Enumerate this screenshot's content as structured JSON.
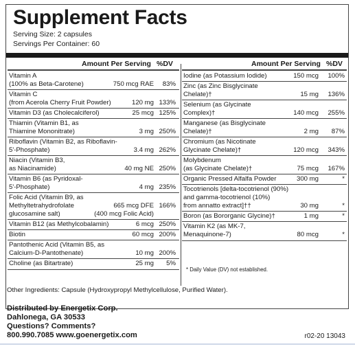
{
  "panel": {
    "title": "Supplement Facts",
    "serving_size": "Serving Size: 2 capsules",
    "servings_per_container": "Servings Per Container: 60"
  },
  "left_column": {
    "header_amount": "Amount Per Serving",
    "header_dv": "%DV",
    "rows": [
      {
        "line1": "Vitamin A",
        "line2": "(100% as Beta-Carotene)",
        "amount": "750 mcg RAE",
        "dv": "83%"
      },
      {
        "line1": "Vitamin C",
        "line2": "(from Acerola Cherry Fruit Powder)",
        "amount": "120 mg",
        "dv": "133%"
      },
      {
        "line1": "Vitamin D3 (as Cholecalciferol)",
        "amount": "25 mcg",
        "dv": "125%"
      },
      {
        "line1": "Thiamin (Vitamin B1, as",
        "line2": "Thiamine Mononitrate)",
        "amount": "3 mg",
        "dv": "250%"
      },
      {
        "line1": "Riboflavin (Vitamin B2, as Riboflavin-",
        "line2": "5'-Phosphate)",
        "amount": "3.4 mg",
        "dv": "262%"
      },
      {
        "line1": "Niacin (Vitamin B3,",
        "line2": "as Niacinamide)",
        "amount": "40 mg NE",
        "dv": "250%"
      },
      {
        "line1": "Vitamin B6 (as Pyridoxal-",
        "line2": "5'-Phosphate)",
        "amount": "4 mg",
        "dv": "235%"
      },
      {
        "line1": "Folic Acid (Vitamin B9, as",
        "line2": "Methyltetrahydrofolate",
        "amount": "665 mcg DFE",
        "dv": "166%",
        "line3": "glucosamine salt)",
        "line3_amount": "(400 mcg Folic Acid)"
      },
      {
        "line1": "Vitamin B12 (as Methylcobalamin)",
        "amount": "6 mcg",
        "dv": "250%"
      },
      {
        "line1": "Biotin",
        "amount": "60 mcg",
        "dv": "200%"
      },
      {
        "line1": "Pantothenic Acid (Vitamin B5, as",
        "line2": "Calcium-D-Pantothenate)",
        "amount": "10 mg",
        "dv": "200%"
      },
      {
        "line1": "Choline (as Bitartrate)",
        "amount": "25 mg",
        "dv": "5%"
      }
    ]
  },
  "right_column": {
    "header_amount": "Amount Per Serving",
    "header_dv": "%DV",
    "rows": [
      {
        "line1": "Iodine (as Potassium Iodide)",
        "amount": "150 mcg",
        "dv": "100%"
      },
      {
        "line1": "Zinc (as Zinc Bisglycinate",
        "line2": "Chelate)†",
        "amount": "15 mg",
        "dv": "136%"
      },
      {
        "line1": "Selenium (as Glycinate",
        "line2": "Complex)†",
        "amount": "140 mcg",
        "dv": "255%"
      },
      {
        "line1": "Manganese (as Bisglycinate",
        "line2": "Chelate)†",
        "amount": "2 mg",
        "dv": "87%"
      },
      {
        "line1": "Chromium (as Nicotinate",
        "line2": "Glycinate Chelate)†",
        "amount": "120 mcg",
        "dv": "343%"
      },
      {
        "line1": "Molybdenum",
        "line2": "(as Glycinate Chelate)†",
        "amount": "75 mcg",
        "dv": "167%"
      },
      {
        "line1": "Organic Pressed Alfalfa Powder",
        "amount": "300 mg",
        "dv": "*"
      },
      {
        "line1": "Tocotrienols [delta-tocotrienol (90%)",
        "line2": "and gamma-tocotrienol (10%)",
        "line3": "from annatto extract]††",
        "amount": "30 mg",
        "dv": "*"
      },
      {
        "line1": "Boron (as Bororganic Glycine)†",
        "amount": "1 mg",
        "dv": "*"
      },
      {
        "line1": "Vitamin K2 (as MK-7,",
        "line2": "Menaquinone-7)",
        "amount": "80 mcg",
        "dv": "*"
      }
    ],
    "footnote": "* Daily Value (DV) not established."
  },
  "other_ingredients": "Other Ingredients: Capsule (Hydroxypropyl Methylcellulose, Purified Water).",
  "distributor": {
    "line1": "Distributed by Energetix Corp.",
    "line2": "Dahlonega, GA 30533",
    "line3": "Questions? Comments?",
    "line4": "800.990.7085  www.goenergetix.com"
  },
  "code": "r02-20 13043"
}
